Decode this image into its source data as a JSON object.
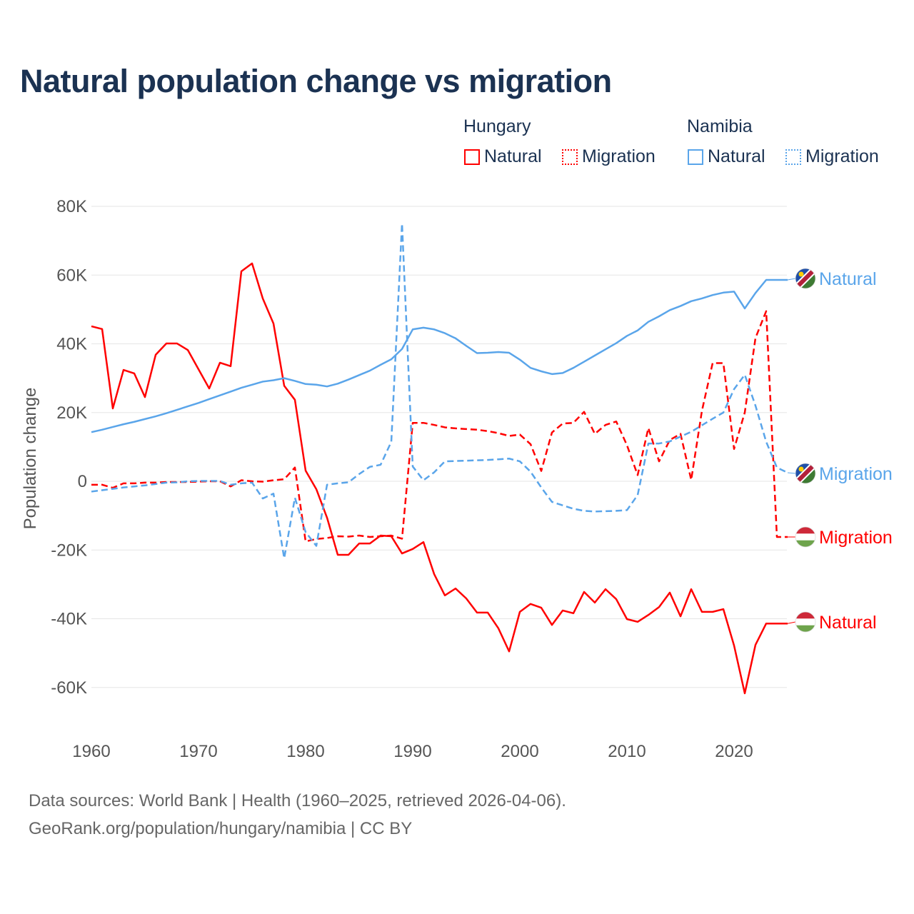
{
  "colors": {
    "hungary": "#ff0000",
    "namibia": "#5aa5ea",
    "title": "#1b3252",
    "grid": "#e6e6e6",
    "tick": "#555555"
  },
  "chart_data": {
    "type": "line",
    "title": "Natural population change vs migration",
    "ylabel": "Population change",
    "xlabel": "",
    "xlim": [
      1960,
      2025
    ],
    "ylim": [
      -70000,
      80000
    ],
    "xticks": [
      1960,
      1970,
      1980,
      1990,
      2000,
      2010,
      2020
    ],
    "xtick_labels": [
      "1960",
      "1970",
      "1980",
      "1990",
      "2000",
      "2010",
      "2020"
    ],
    "yticks": [
      80000,
      60000,
      40000,
      20000,
      0,
      -20000,
      -40000,
      -60000
    ],
    "ytick_labels": [
      "80K",
      "60K",
      "40K",
      "20K",
      "0",
      "-20K",
      "-40K",
      "-60K"
    ],
    "grid": true,
    "legend_placement": "top-right",
    "legend": {
      "groups": [
        "Hungary",
        "Namibia"
      ],
      "items": [
        "Natural",
        "Migration",
        "Natural",
        "Migration"
      ]
    },
    "start_year": 1960,
    "series": [
      {
        "name": "Natural",
        "country": "Hungary",
        "style": "solid",
        "end_label": "Natural",
        "values": [
          45.1,
          44.3,
          21.2,
          32.4,
          31.4,
          24.5,
          36.8,
          40.1,
          40.1,
          38.2,
          32.6,
          27.0,
          34.5,
          33.5,
          61.1,
          63.4,
          53.2,
          45.9,
          27.8,
          23.7,
          3.1,
          -2.3,
          -10.6,
          -21.4,
          -21.4,
          -18.1,
          -18.1,
          -15.8,
          -16.0,
          -21.0,
          -19.7,
          -17.7,
          -27.0,
          -33.2,
          -31.2,
          -34.1,
          -38.2,
          -38.2,
          -42.8,
          -49.5,
          -38.0,
          -35.7,
          -36.8,
          -41.8,
          -37.6,
          -38.4,
          -32.2,
          -35.3,
          -31.4,
          -34.3,
          -40.1,
          -40.9,
          -38.9,
          -36.6,
          -32.4,
          -39.3,
          -31.4,
          -38.0,
          -38.0,
          -37.2,
          -47.8,
          -61.7,
          -47.6,
          -41.4,
          -41.4,
          -41.4
        ]
      },
      {
        "name": "Migration",
        "country": "Hungary",
        "style": "dashed",
        "end_label": "Migration",
        "values": [
          -1.0,
          -1.0,
          -1.9,
          -0.6,
          -0.6,
          -0.4,
          -0.4,
          -0.2,
          -0.2,
          -0.2,
          -0.1,
          0,
          0,
          -1.5,
          0.3,
          0,
          -0.1,
          0.3,
          0.6,
          4.0,
          -17.5,
          -16.8,
          -16.5,
          -16.0,
          -16.1,
          -15.8,
          -16.2,
          -16.0,
          -15.8,
          -16.7,
          17.0,
          17.0,
          16.4,
          15.7,
          15.4,
          15.2,
          15.0,
          14.6,
          14.0,
          13.2,
          13.6,
          10.8,
          3.0,
          14.2,
          16.8,
          17.0,
          20.2,
          13.8,
          16.4,
          17.4,
          10.5,
          1.8,
          15.5,
          5.8,
          12.0,
          13.8,
          0.4,
          20.5,
          34.4,
          34.4,
          9.4,
          20.0,
          41.7,
          49.5,
          -16.2,
          -16.2
        ]
      },
      {
        "name": "Natural",
        "country": "Namibia",
        "style": "solid",
        "end_label": "Natural",
        "values": [
          14.3,
          15.0,
          15.8,
          16.6,
          17.3,
          18.1,
          18.9,
          19.8,
          20.8,
          21.8,
          22.8,
          23.9,
          25.0,
          26.1,
          27.2,
          28.1,
          29.0,
          29.4,
          30.0,
          29.2,
          28.3,
          28.1,
          27.6,
          28.4,
          29.6,
          30.9,
          32.2,
          33.9,
          35.5,
          38.5,
          44.2,
          44.7,
          44.2,
          43.1,
          41.6,
          39.4,
          37.3,
          37.4,
          37.6,
          37.4,
          35.4,
          33.0,
          32.0,
          31.2,
          31.5,
          33.0,
          34.8,
          36.6,
          38.4,
          40.2,
          42.3,
          43.9,
          46.4,
          48.0,
          49.8,
          51.0,
          52.4,
          53.2,
          54.2,
          54.9,
          55.2,
          50.3,
          54.8,
          58.6,
          58.6,
          58.6
        ]
      },
      {
        "name": "Migration",
        "country": "Namibia",
        "style": "dashed",
        "end_label": "Migration",
        "values": [
          -3.0,
          -2.6,
          -2.2,
          -1.8,
          -1.5,
          -1.2,
          -0.8,
          -0.4,
          -0.3,
          0,
          0.1,
          0.1,
          0.1,
          -1.0,
          -0.6,
          -0.4,
          -5.0,
          -3.6,
          -22.4,
          -4.8,
          -14.8,
          -18.8,
          -1.0,
          -0.6,
          -0.3,
          2.1,
          4.2,
          4.8,
          11.5,
          75.0,
          4.3,
          0.3,
          2.6,
          5.8,
          5.9,
          6.0,
          6.1,
          6.2,
          6.4,
          6.6,
          5.8,
          2.8,
          -1.8,
          -6.0,
          -7.0,
          -8.0,
          -8.6,
          -8.8,
          -8.7,
          -8.6,
          -8.4,
          -4.0,
          11.0,
          11.0,
          11.6,
          13.0,
          14.4,
          16.3,
          18.2,
          20.0,
          26.8,
          31.0,
          22.0,
          11.5,
          4.0,
          2.5
        ]
      }
    ],
    "value_unit": "thousands"
  },
  "footer": {
    "line1": "Data sources: World Bank | Health (1960–2025, retrieved 2026-04-06).",
    "line2": "GeoRank.org/population/hungary/namibia | CC BY"
  }
}
